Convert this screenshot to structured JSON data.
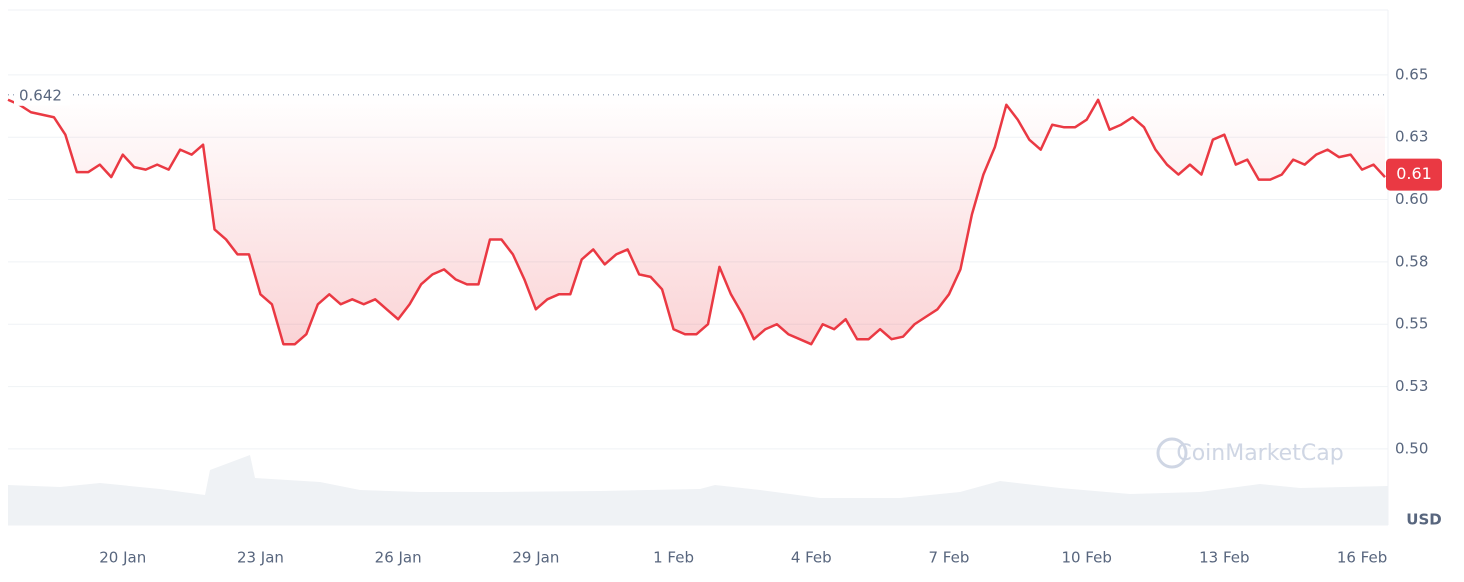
{
  "chart_data": {
    "type": "line",
    "categories": [
      null,
      null,
      null,
      null,
      null,
      null,
      null,
      null,
      null,
      null,
      "20 Jan",
      null,
      null,
      null,
      null,
      null,
      null,
      null,
      null,
      null,
      null,
      null,
      "23 Jan",
      null,
      null,
      null,
      null,
      null,
      null,
      null,
      null,
      null,
      null,
      null,
      "26 Jan",
      null,
      null,
      null,
      null,
      null,
      null,
      null,
      null,
      null,
      null,
      null,
      "29 Jan",
      null,
      null,
      null,
      null,
      null,
      null,
      null,
      null,
      null,
      null,
      null,
      "1 Feb",
      null,
      null,
      null,
      null,
      null,
      null,
      null,
      null,
      null,
      null,
      null,
      "4 Feb",
      null,
      null,
      null,
      null,
      null,
      null,
      null,
      null,
      null,
      null,
      null,
      "7 Feb",
      null,
      null,
      null,
      null,
      null,
      null,
      null,
      null,
      null,
      null,
      null,
      "10 Feb",
      null,
      null,
      null,
      null,
      null,
      null,
      null,
      null,
      null,
      null,
      null,
      "13 Feb",
      null,
      null,
      null,
      null,
      null,
      null,
      null,
      null,
      null,
      null,
      null,
      "16 Feb",
      null,
      null
    ],
    "series": [
      {
        "color": "#ea3943",
        "values": [
          0.64,
          0.638,
          0.635,
          0.634,
          0.633,
          0.626,
          0.611,
          0.611,
          0.614,
          0.609,
          0.618,
          0.613,
          0.612,
          0.614,
          0.612,
          0.62,
          0.618,
          0.622,
          0.588,
          0.584,
          0.578,
          0.578,
          0.562,
          0.558,
          0.542,
          0.542,
          0.546,
          0.558,
          0.562,
          0.558,
          0.56,
          0.558,
          0.56,
          0.556,
          0.552,
          0.558,
          0.566,
          0.57,
          0.572,
          0.568,
          0.566,
          0.566,
          0.584,
          0.584,
          0.578,
          0.568,
          0.556,
          0.56,
          0.562,
          0.562,
          0.576,
          0.58,
          0.574,
          0.578,
          0.58,
          0.57,
          0.569,
          0.564,
          0.548,
          0.546,
          0.546,
          0.55,
          0.573,
          0.562,
          0.554,
          0.544,
          0.548,
          0.55,
          0.546,
          0.544,
          0.542,
          0.55,
          0.548,
          0.552,
          0.544,
          0.544,
          0.548,
          0.544,
          0.545,
          0.55,
          0.553,
          0.556,
          0.562,
          0.572,
          0.594,
          0.61,
          0.621,
          0.638,
          0.632,
          0.624,
          0.62,
          0.63,
          0.629,
          0.629,
          0.632,
          0.64,
          0.628,
          0.63,
          0.633,
          0.629,
          0.62,
          0.614,
          0.61,
          0.614,
          0.61,
          0.624,
          0.626,
          0.614,
          0.616,
          0.608,
          0.608,
          0.61,
          0.616,
          0.614,
          0.618,
          0.62,
          0.617,
          0.618,
          0.612,
          0.614,
          0.609
        ]
      }
    ],
    "reference": 0.642,
    "price_tag": 0.61,
    "ylim": [
      0.4695,
      0.676
    ],
    "yticks": [
      {
        "value": 0.5,
        "label": "0.50"
      },
      {
        "value": 0.525,
        "label": "0.53"
      },
      0.55,
      {
        "value": 0.575,
        "label": "0.58"
      },
      {
        "value": 0.6,
        "label": "0.60"
      },
      {
        "value": 0.625,
        "label": "0.63"
      },
      0.65
    ],
    "y_unit": "USD",
    "watermark": "CoinMarketCap",
    "grid": true
  }
}
